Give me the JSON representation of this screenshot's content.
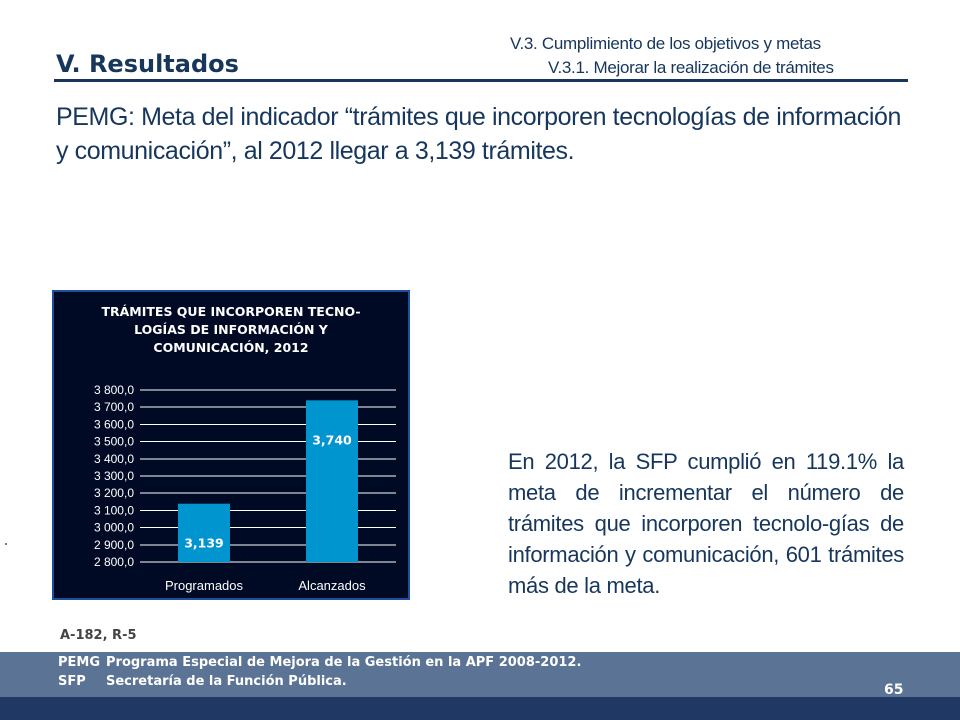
{
  "header": {
    "section_title": "V. Resultados",
    "subtitle_1": "V.3. Cumplimiento de los objetivos y metas",
    "subtitle_2": "V.3.1. Mejorar la realización de trámites"
  },
  "headline": "PEMG: Meta del indicador “trámites que incorporen tecnologías de información y comunicación”, al 2012 llegar a 3,139 trámites.",
  "description": "En 2012, la SFP cumplió en 119.1% la meta de incrementar el número de trámites que incorporen tecnolo-gías de información y comunicación, 601 trámites más de la meta.",
  "source": "A-182, R-5",
  "footer": {
    "note_1_abbr": "PEMG",
    "note_1_text": "Programa Especial de Mejora de la Gestión en la APF 2008-2012.",
    "note_2_abbr": "SFP",
    "note_2_text": "Secretaría de la  Función Pública.",
    "page_number": "65"
  },
  "colors": {
    "bar": "#0095cf",
    "chart_background": "#000a24",
    "text_primary": "#16365c"
  },
  "chart_data": {
    "type": "bar",
    "title": "TRÁMITES QUE INCORPOREN TECNO-LOGÍAS DE INFORMACIÓN Y COMUNICACIÓN, 2012",
    "title_lines": [
      "TRÁMITES QUE INCORPOREN TECNO-",
      "LOGÍAS DE INFORMACIÓN Y",
      "COMUNICACIÓN, 2012"
    ],
    "categories": [
      "Programados",
      "Alcanzados"
    ],
    "values": [
      3139,
      3740
    ],
    "data_labels": [
      "3,139",
      "3,740"
    ],
    "xlabel": "",
    "ylabel": "",
    "ylim": [
      2800,
      3800
    ],
    "yticks": [
      2800,
      2900,
      3000,
      3100,
      3200,
      3300,
      3400,
      3500,
      3600,
      3700,
      3800
    ],
    "ytick_labels": [
      "2 800,0",
      "2 900,0",
      "3 000,0",
      "3 100,0",
      "3 200,0",
      "3 300,0",
      "3 400,0",
      "3 500,0",
      "3 600,0",
      "3 700,0",
      "3 800,0"
    ],
    "grid": true,
    "legend": "none"
  }
}
